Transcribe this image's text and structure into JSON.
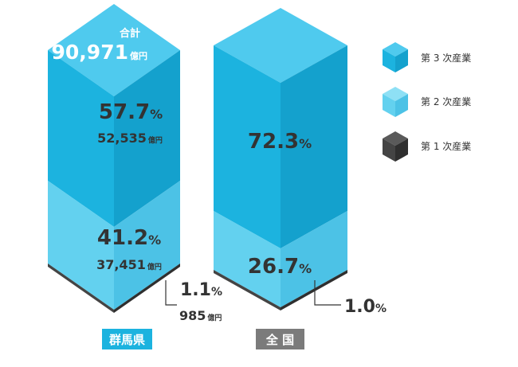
{
  "colors": {
    "tertiary": "#1cb3df",
    "tertiary_side": "#14a1cd",
    "tertiary_top": "#4fcaee",
    "secondary": "#63d1ef",
    "secondary_side": "#4cc2e6",
    "primary": "#444444",
    "primary_top": "#5a5a5a",
    "primary_side": "#2f2f2f",
    "gunma_label_bg": "#1cb3df",
    "national_label_bg": "#7b7b7b",
    "text": "#333333"
  },
  "legend": {
    "items": [
      {
        "label": "第 3 次産業",
        "color_key": "tertiary"
      },
      {
        "label": "第 2 次産業",
        "color_key": "secondary"
      },
      {
        "label": "第 1 次産業",
        "color_key": "primary"
      }
    ]
  },
  "chart_data": {
    "type": "stacked-bar",
    "categories": [
      "群馬県",
      "全国"
    ],
    "series": [
      {
        "name": "第 3 次産業",
        "values": [
          57.7,
          72.3
        ],
        "amount_labels": [
          "52,535",
          null
        ]
      },
      {
        "name": "第 2 次産業",
        "values": [
          41.2,
          26.7
        ],
        "amount_labels": [
          "37,451",
          null
        ]
      },
      {
        "name": "第 1 次産業",
        "values": [
          1.1,
          1.0
        ],
        "amount_labels": [
          "985",
          null
        ]
      }
    ],
    "unit_percent": "%",
    "unit_amount": "億円",
    "total": {
      "label": "合計",
      "value": "90,971",
      "unit": "億円"
    },
    "pct_labels": {
      "gunma": {
        "tertiary": "57.7",
        "secondary": "41.2",
        "primary": "1.1"
      },
      "national": {
        "tertiary": "72.3",
        "secondary": "26.7",
        "primary": "1.0"
      }
    },
    "category_labels": {
      "gunma": "群馬県",
      "national": "全 国"
    }
  }
}
